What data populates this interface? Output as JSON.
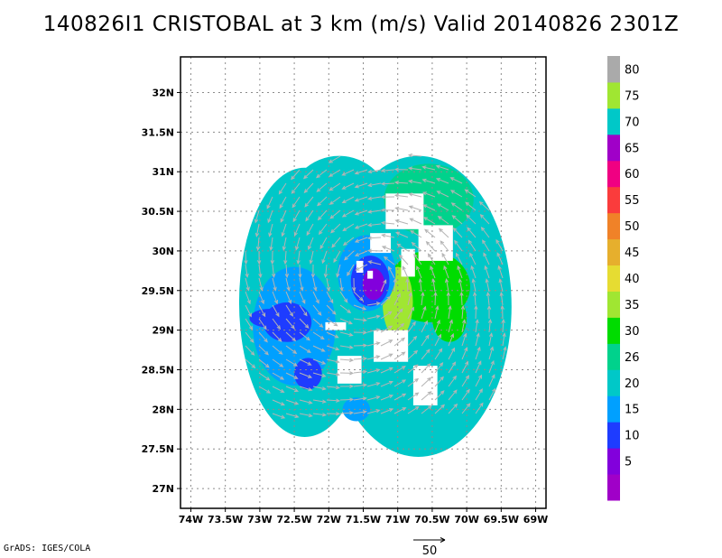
{
  "title": "140826I1 CRISTOBAL at 3 km (m/s) Valid 20140826 2301Z",
  "credit": "GrADS: IGES/COLA",
  "chart_data": {
    "type": "heatmap",
    "title": "140826I1 CRISTOBAL at 3 km (m/s) Valid 20140826 2301Z",
    "variable": "wind speed at 3 km (m/s) with wind vectors",
    "xlim": [
      -74.15,
      -68.85
    ],
    "ylim": [
      26.75,
      32.45
    ],
    "x_ticks": [
      {
        "v": -74,
        "label": "74W"
      },
      {
        "v": -73.5,
        "label": "73.5W"
      },
      {
        "v": -73,
        "label": "73W"
      },
      {
        "v": -72.5,
        "label": "72.5W"
      },
      {
        "v": -72,
        "label": "72W"
      },
      {
        "v": -71.5,
        "label": "71.5W"
      },
      {
        "v": -71,
        "label": "71W"
      },
      {
        "v": -70.5,
        "label": "70.5W"
      },
      {
        "v": -70,
        "label": "70W"
      },
      {
        "v": -69.5,
        "label": "69.5W"
      },
      {
        "v": -69,
        "label": "69W"
      }
    ],
    "y_ticks": [
      {
        "v": 27,
        "label": "27N"
      },
      {
        "v": 27.5,
        "label": "27.5N"
      },
      {
        "v": 28,
        "label": "28N"
      },
      {
        "v": 28.5,
        "label": "28.5N"
      },
      {
        "v": 29,
        "label": "29N"
      },
      {
        "v": 29.5,
        "label": "29.5N"
      },
      {
        "v": 30,
        "label": "30N"
      },
      {
        "v": 30.5,
        "label": "30.5N"
      },
      {
        "v": 31,
        "label": "31N"
      },
      {
        "v": 31.5,
        "label": "31.5N"
      },
      {
        "v": 32,
        "label": "32N"
      }
    ],
    "grid": true,
    "storm_center": {
      "lon": -71.4,
      "lat": 29.6
    },
    "colorbar": [
      {
        "label": "",
        "color": "#a000c8"
      },
      {
        "label": "5",
        "color": "#8200dc"
      },
      {
        "label": "10",
        "color": "#1e3cff"
      },
      {
        "label": "15",
        "color": "#00a0ff"
      },
      {
        "label": "20",
        "color": "#00c8c8"
      },
      {
        "label": "26",
        "color": "#00d28c"
      },
      {
        "label": "30",
        "color": "#00dc00"
      },
      {
        "label": "35",
        "color": "#a0e632"
      },
      {
        "label": "40",
        "color": "#e6dc32"
      },
      {
        "label": "45",
        "color": "#e6af2d"
      },
      {
        "label": "50",
        "color": "#f08228"
      },
      {
        "label": "55",
        "color": "#fa3c3c"
      },
      {
        "label": "60",
        "color": "#f00082"
      },
      {
        "label": "65",
        "color": "#a000c8"
      },
      {
        "label": "70",
        "color": "#00c8c8"
      },
      {
        "label": "75",
        "color": "#a0e632"
      },
      {
        "label": "80",
        "color": "#aaaaaa"
      }
    ],
    "regions": [
      {
        "kind": "ellipse",
        "lon": -70.7,
        "lat": 29.3,
        "rx": 1.35,
        "ry": 1.9,
        "c": 4
      },
      {
        "kind": "ellipse",
        "lon": -72.35,
        "lat": 29.35,
        "rx": 0.95,
        "ry": 1.7,
        "c": 4
      },
      {
        "kind": "ellipse",
        "lon": -71.85,
        "lat": 30.55,
        "rx": 0.75,
        "ry": 0.65,
        "c": 4
      },
      {
        "kind": "ellipse",
        "lon": -70.95,
        "lat": 28.15,
        "rx": 0.8,
        "ry": 0.35,
        "c": 4
      },
      {
        "kind": "ellipse",
        "lon": -72.5,
        "lat": 29.05,
        "rx": 0.6,
        "ry": 0.75,
        "c": 3
      },
      {
        "kind": "ellipse",
        "lon": -71.6,
        "lat": 28.0,
        "rx": 0.2,
        "ry": 0.15,
        "c": 3
      },
      {
        "kind": "ellipse",
        "lon": -72.6,
        "lat": 29.1,
        "rx": 0.35,
        "ry": 0.25,
        "c": 2
      },
      {
        "kind": "ellipse",
        "lon": -72.85,
        "lat": 29.15,
        "rx": 0.3,
        "ry": 0.12,
        "c": 2
      },
      {
        "kind": "ellipse",
        "lon": -72.3,
        "lat": 28.45,
        "rx": 0.2,
        "ry": 0.2,
        "c": 2
      },
      {
        "kind": "ellipse",
        "lon": -70.55,
        "lat": 30.65,
        "rx": 0.65,
        "ry": 0.45,
        "c": 5
      },
      {
        "kind": "ellipse",
        "lon": -70.55,
        "lat": 29.55,
        "rx": 0.6,
        "ry": 0.45,
        "c": 6
      },
      {
        "kind": "ellipse",
        "lon": -70.25,
        "lat": 29.15,
        "rx": 0.25,
        "ry": 0.3,
        "c": 6
      },
      {
        "kind": "ellipse",
        "lon": -71.0,
        "lat": 29.35,
        "rx": 0.22,
        "ry": 0.45,
        "c": 7
      },
      {
        "kind": "ellipse",
        "lon": -71.45,
        "lat": 29.72,
        "rx": 0.42,
        "ry": 0.48,
        "c": 3
      },
      {
        "kind": "ellipse",
        "lon": -71.4,
        "lat": 29.62,
        "rx": 0.28,
        "ry": 0.32,
        "c": 2
      },
      {
        "kind": "ellipse",
        "lon": -71.35,
        "lat": 29.58,
        "rx": 0.16,
        "ry": 0.2,
        "c": 1
      },
      {
        "kind": "rect",
        "lon": -70.9,
        "lat": 30.5,
        "w": 0.55,
        "h": 0.45,
        "c": -1
      },
      {
        "kind": "rect",
        "lon": -71.25,
        "lat": 30.1,
        "w": 0.3,
        "h": 0.25,
        "c": -1
      },
      {
        "kind": "rect",
        "lon": -70.85,
        "lat": 29.85,
        "w": 0.2,
        "h": 0.35,
        "c": -1
      },
      {
        "kind": "rect",
        "lon": -70.45,
        "lat": 30.1,
        "w": 0.5,
        "h": 0.45,
        "c": -1
      },
      {
        "kind": "rect",
        "lon": -71.55,
        "lat": 29.8,
        "w": 0.1,
        "h": 0.15,
        "c": -1
      },
      {
        "kind": "rect",
        "lon": -71.4,
        "lat": 29.7,
        "w": 0.08,
        "h": 0.1,
        "c": -1
      },
      {
        "kind": "rect",
        "lon": -71.1,
        "lat": 28.8,
        "w": 0.5,
        "h": 0.4,
        "c": -1
      },
      {
        "kind": "rect",
        "lon": -70.6,
        "lat": 28.3,
        "w": 0.35,
        "h": 0.5,
        "c": -1
      },
      {
        "kind": "rect",
        "lon": -71.7,
        "lat": 28.5,
        "w": 0.35,
        "h": 0.35,
        "c": -1
      },
      {
        "kind": "rect",
        "lon": -71.9,
        "lat": 29.05,
        "w": 0.3,
        "h": 0.1,
        "c": -1
      }
    ]
  },
  "vector_key": {
    "label": "50"
  }
}
